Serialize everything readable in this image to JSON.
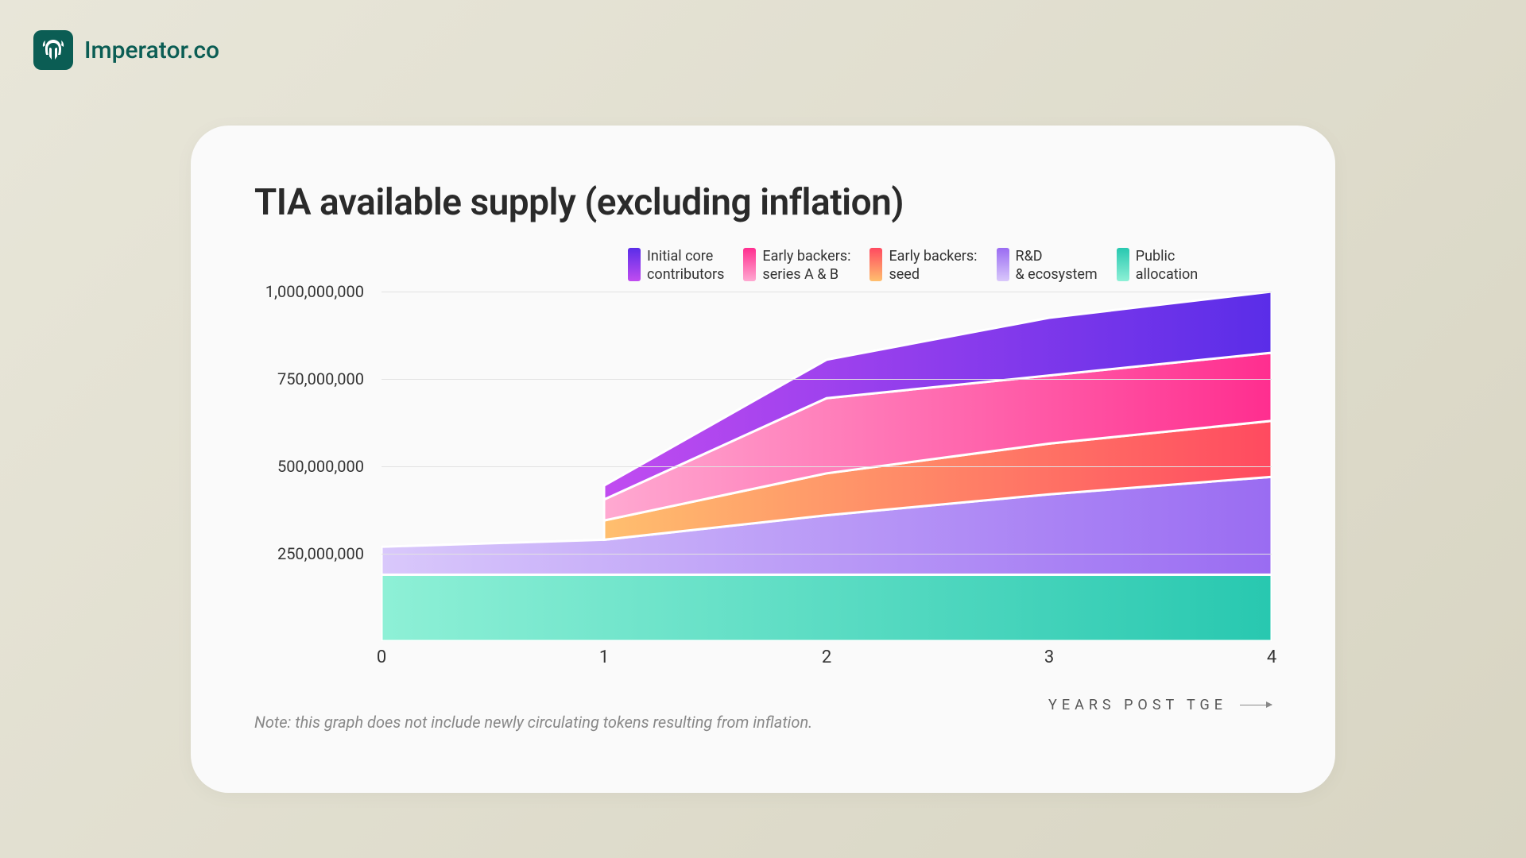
{
  "brand": {
    "name": "Imperator.co",
    "logo_bg": "#0b5d54"
  },
  "card": {
    "title": "TIA available supply (excluding inflation)",
    "note": "Note: this graph does not include newly circulating tokens resulting from inflation.",
    "background": "#fafafa"
  },
  "chart": {
    "type": "stacked-area",
    "x": [
      0,
      1,
      2,
      3,
      4
    ],
    "x_axis_title": "YEARS POST TGE",
    "ylim": [
      0,
      1000000000
    ],
    "y_ticks": [
      250000000,
      500000000,
      750000000,
      1000000000
    ],
    "y_tick_labels": [
      "250,000,000",
      "500,000,000",
      "750,000,000",
      "1,000,000,000"
    ],
    "grid_color": "#e2e2e2",
    "plot_bg": "#fafafa",
    "title_fontsize": 46,
    "label_fontsize": 20,
    "series": [
      {
        "key": "public_allocation",
        "label_lines": [
          "Public",
          "allocation"
        ],
        "gradient": [
          "#8ef0d6",
          "#28c8b0"
        ],
        "values": [
          190000000,
          190000000,
          190000000,
          190000000,
          190000000
        ]
      },
      {
        "key": "rd_ecosystem",
        "label_lines": [
          "R&D",
          "& ecosystem"
        ],
        "gradient": [
          "#d9c8fb",
          "#9a6cf2"
        ],
        "values": [
          80000000,
          100000000,
          170000000,
          230000000,
          280000000
        ]
      },
      {
        "key": "early_seed",
        "label_lines": [
          "Early backers:",
          "seed"
        ],
        "gradient": [
          "#ffbf6e",
          "#ff4a60"
        ],
        "values": [
          0,
          55000000,
          120000000,
          145000000,
          160000000
        ]
      },
      {
        "key": "early_ab",
        "label_lines": [
          "Early backers:",
          "series A & B"
        ],
        "gradient": [
          "#ffa9d1",
          "#ff2e8f"
        ],
        "values": [
          0,
          60000000,
          215000000,
          195000000,
          195000000
        ]
      },
      {
        "key": "initial_core",
        "label_lines": [
          "Initial core",
          "contributors"
        ],
        "gradient": [
          "#c14cf0",
          "#5a2de8"
        ],
        "values": [
          0,
          40000000,
          110000000,
          165000000,
          175000000
        ]
      }
    ],
    "stroke_between": "#ffffff",
    "stroke_width": 3
  },
  "legend_order": [
    "initial_core",
    "early_ab",
    "early_seed",
    "rd_ecosystem",
    "public_allocation"
  ]
}
